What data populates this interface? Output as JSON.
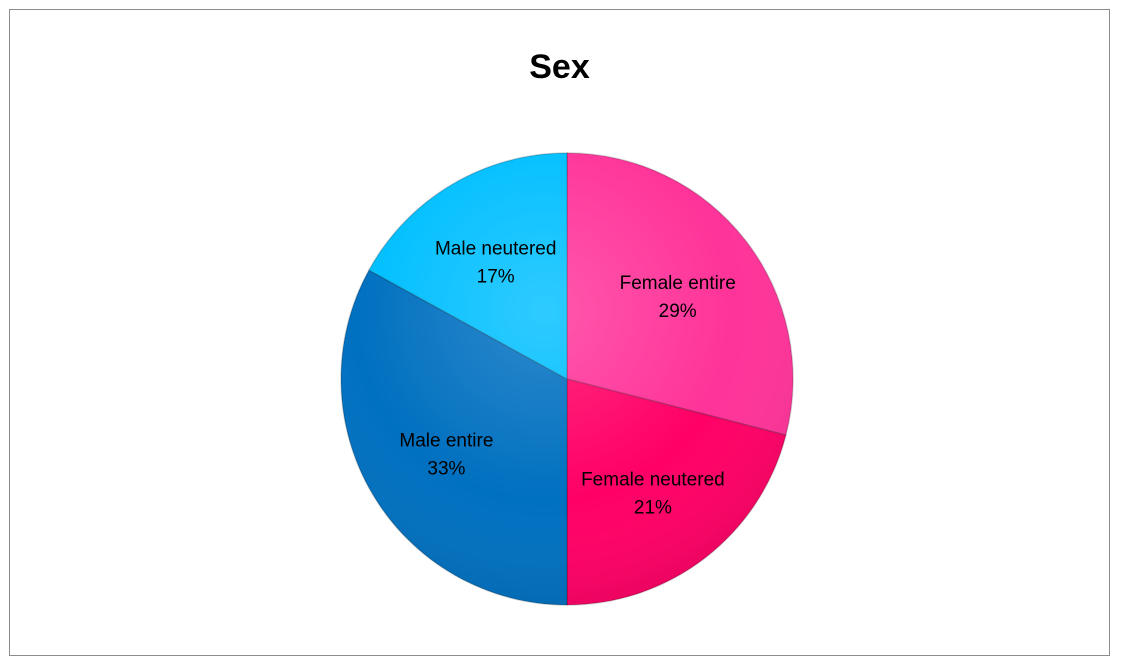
{
  "chart_data": {
    "type": "pie",
    "title": "Sex",
    "slices": [
      {
        "label": "Female entire",
        "value": 29,
        "value_label": "29%",
        "color": "#ff3399"
      },
      {
        "label": "Female neutered",
        "value": 21,
        "value_label": "21%",
        "color": "#ff0066"
      },
      {
        "label": "Male entire",
        "value": 33,
        "value_label": "33%",
        "color": "#0070c0"
      },
      {
        "label": "Male neutered",
        "value": 17,
        "value_label": "17%",
        "color": "#00bfff"
      }
    ],
    "start_angle": "12 o'clock",
    "direction": "clockwise",
    "legend": "none"
  }
}
